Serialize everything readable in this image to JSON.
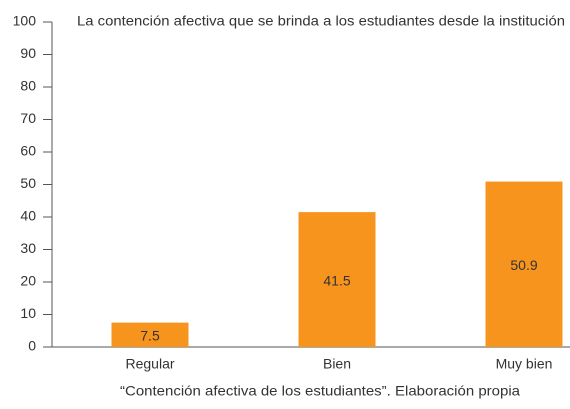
{
  "chart_data": {
    "type": "bar",
    "title": "La contención afectiva que se brinda a los estudiantes desde la institución",
    "x_label": "“Contención afectiva de los estudiantes”. Elaboración propia",
    "categories": [
      "Regular",
      "Bien",
      "Muy bien"
    ],
    "values": [
      7.5,
      41.5,
      50.9
    ],
    "color": "#f7941d",
    "ylim": [
      0,
      100
    ],
    "yticks": [
      0,
      10,
      20,
      30,
      40,
      50,
      60,
      70,
      80,
      90,
      100
    ],
    "grid": false
  }
}
